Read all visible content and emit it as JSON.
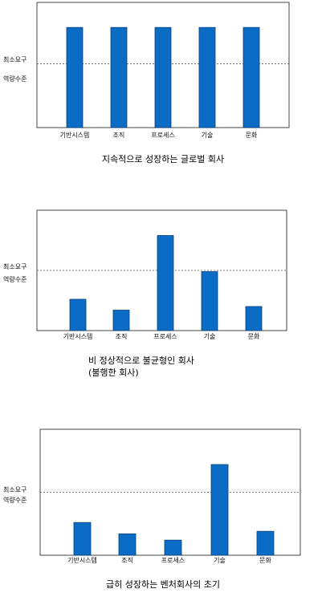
{
  "colors": {
    "bar": "#0b6cc6",
    "bar_stroke": "#0a3f7a",
    "axis": "#444444",
    "ref_line": "#555555"
  },
  "chart_data": [
    {
      "type": "bar",
      "categories": [
        "기반시스템",
        "조직",
        "프로세스",
        "기술",
        "문화"
      ],
      "values": [
        80,
        80,
        80,
        80,
        80
      ],
      "reference": {
        "value": 51,
        "label_lines": [
          "최소요구",
          "역량수준"
        ]
      },
      "ylim": [
        0,
        100
      ],
      "grid": false,
      "caption_lines": [
        "지속적으로 성장하는 글로벌 회사"
      ]
    },
    {
      "type": "bar",
      "categories": [
        "기반시스템",
        "조직",
        "프로세스",
        "기술",
        "문화"
      ],
      "values": [
        26,
        17,
        79,
        49,
        20
      ],
      "reference": {
        "value": 50,
        "label_lines": [
          "최소요구",
          "역량수준"
        ]
      },
      "ylim": [
        0,
        100
      ],
      "grid": false,
      "caption_lines": [
        "비 정상적으로 불균형인 회사",
        "(불행한 회사)"
      ]
    },
    {
      "type": "bar",
      "categories": [
        "기반시스템",
        "조직",
        "프로세스",
        "기술",
        "문화"
      ],
      "values": [
        26,
        17,
        12,
        72,
        19
      ],
      "reference": {
        "value": 50,
        "label_lines": [
          "최소요구",
          "역량수준"
        ]
      },
      "ylim": [
        0,
        100
      ],
      "grid": false,
      "caption_lines": [
        "급히 성장하는 벤처회사의 초기"
      ]
    }
  ]
}
